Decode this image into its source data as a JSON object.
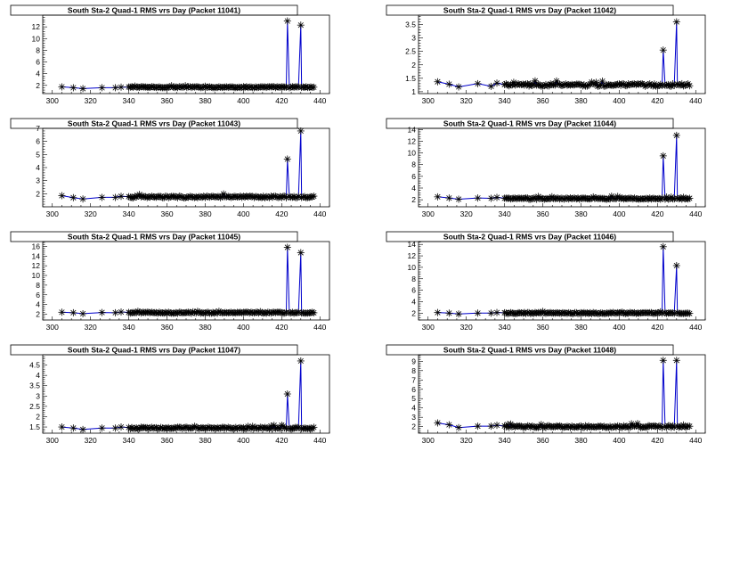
{
  "chart_data": [
    {
      "type": "line",
      "title": "South Sta-2 Quad-1 RMS vrs Day (Packet 11041)",
      "xlim": [
        295,
        445
      ],
      "ylim": [
        0.6,
        14
      ],
      "xticks": [
        300,
        320,
        340,
        360,
        380,
        400,
        420,
        440
      ],
      "yticks": [
        2,
        4,
        6,
        8,
        10,
        12
      ],
      "ytick_labels": [
        "2",
        "4",
        "6",
        "8",
        "10",
        "12"
      ],
      "series": [
        {
          "baseline": 1.7,
          "jitter": 0.09,
          "early": [
            1.75,
            1.6,
            1.45,
            1.6,
            1.6,
            1.7
          ],
          "spikes": [
            [
              423,
              13.0
            ],
            [
              430,
              12.3
            ]
          ]
        }
      ]
    },
    {
      "type": "line",
      "title": "South Sta-2 Quad-1 RMS vrs Day (Packet 11042)",
      "xlim": [
        295,
        445
      ],
      "ylim": [
        0.93,
        3.85
      ],
      "xticks": [
        300,
        320,
        340,
        360,
        380,
        400,
        420,
        440
      ],
      "yticks": [
        1,
        1.5,
        2,
        2.5,
        3,
        3.5
      ],
      "ytick_labels": [
        "1",
        "1.5",
        "2",
        "2.5",
        "3",
        "3.5"
      ],
      "series": [
        {
          "baseline": 1.25,
          "jitter": 0.05,
          "early": [
            1.37,
            1.28,
            1.18,
            1.3,
            1.2,
            1.32
          ],
          "spikes": [
            [
              423,
              2.55
            ],
            [
              430,
              3.6
            ]
          ]
        }
      ]
    },
    {
      "type": "line",
      "title": "South Sta-2 Quad-1 RMS vrs Day (Packet 11043)",
      "xlim": [
        295,
        445
      ],
      "ylim": [
        1.0,
        7.0
      ],
      "xticks": [
        300,
        320,
        340,
        360,
        380,
        400,
        420,
        440
      ],
      "yticks": [
        2,
        3,
        4,
        5,
        6,
        7
      ],
      "ytick_labels": [
        "2",
        "3",
        "4",
        "5",
        "6",
        "7"
      ],
      "series": [
        {
          "baseline": 1.75,
          "jitter": 0.07,
          "early": [
            1.85,
            1.7,
            1.6,
            1.72,
            1.72,
            1.8
          ],
          "spikes": [
            [
              423,
              4.65
            ],
            [
              430,
              6.8
            ]
          ]
        }
      ]
    },
    {
      "type": "line",
      "title": "South Sta-2 Quad-1 RMS vrs Day (Packet 11044)",
      "xlim": [
        295,
        445
      ],
      "ylim": [
        0.8,
        14.2
      ],
      "xticks": [
        300,
        320,
        340,
        360,
        380,
        400,
        420,
        440
      ],
      "yticks": [
        2,
        4,
        6,
        8,
        10,
        12,
        14
      ],
      "ytick_labels": [
        "2",
        "4",
        "6",
        "8",
        "10",
        "12",
        "14"
      ],
      "series": [
        {
          "baseline": 2.2,
          "jitter": 0.12,
          "early": [
            2.5,
            2.3,
            2.1,
            2.3,
            2.25,
            2.4
          ],
          "spikes": [
            [
              423,
              9.5
            ],
            [
              430,
              13.0
            ]
          ]
        }
      ]
    },
    {
      "type": "line",
      "title": "South Sta-2 Quad-1 RMS vrs Day (Packet 11045)",
      "xlim": [
        295,
        445
      ],
      "ylim": [
        0.8,
        17.0
      ],
      "xticks": [
        300,
        320,
        340,
        360,
        380,
        400,
        420,
        440
      ],
      "yticks": [
        2,
        4,
        6,
        8,
        10,
        12,
        14,
        16
      ],
      "ytick_labels": [
        "2",
        "4",
        "6",
        "8",
        "10",
        "12",
        "14",
        "16"
      ],
      "series": [
        {
          "baseline": 2.3,
          "jitter": 0.12,
          "early": [
            2.4,
            2.3,
            2.1,
            2.35,
            2.3,
            2.45
          ],
          "spikes": [
            [
              423,
              15.8
            ],
            [
              430,
              14.7
            ]
          ]
        }
      ]
    },
    {
      "type": "line",
      "title": "South Sta-2 Quad-1 RMS vrs Day (Packet 11046)",
      "xlim": [
        295,
        445
      ],
      "ylim": [
        0.8,
        14.5
      ],
      "xticks": [
        300,
        320,
        340,
        360,
        380,
        400,
        420,
        440
      ],
      "yticks": [
        2,
        4,
        6,
        8,
        10,
        12,
        14
      ],
      "ytick_labels": [
        "2",
        "4",
        "6",
        "8",
        "10",
        "12",
        "14"
      ],
      "series": [
        {
          "baseline": 2.0,
          "jitter": 0.1,
          "early": [
            2.1,
            2.0,
            1.85,
            2.0,
            2.0,
            2.1
          ],
          "spikes": [
            [
              423,
              13.6
            ],
            [
              430,
              10.3
            ]
          ]
        }
      ]
    },
    {
      "type": "line",
      "title": "South Sta-2 Quad-1 RMS vrs Day (Packet 11047)",
      "xlim": [
        295,
        445
      ],
      "ylim": [
        1.2,
        5.0
      ],
      "xticks": [
        300,
        320,
        340,
        360,
        380,
        400,
        420,
        440
      ],
      "yticks": [
        1.5,
        2,
        2.5,
        3,
        3.5,
        4,
        4.5
      ],
      "ytick_labels": [
        "1.5",
        "2",
        "2.5",
        "3",
        "3.5",
        "4",
        "4.5"
      ],
      "series": [
        {
          "baseline": 1.45,
          "jitter": 0.04,
          "early": [
            1.5,
            1.45,
            1.38,
            1.45,
            1.45,
            1.5
          ],
          "spikes": [
            [
              423,
              3.1
            ],
            [
              430,
              4.7
            ]
          ]
        }
      ]
    },
    {
      "type": "line",
      "title": "South Sta-2 Quad-1 RMS vrs Day (Packet 11048)",
      "xlim": [
        295,
        445
      ],
      "ylim": [
        1.3,
        9.7
      ],
      "xticks": [
        300,
        320,
        340,
        360,
        380,
        400,
        420,
        440
      ],
      "yticks": [
        2,
        3,
        4,
        5,
        6,
        7,
        8,
        9
      ],
      "ytick_labels": [
        "2",
        "3",
        "4",
        "5",
        "6",
        "7",
        "8",
        "9"
      ],
      "series": [
        {
          "baseline": 2.0,
          "jitter": 0.1,
          "early": [
            2.4,
            2.2,
            1.9,
            2.05,
            2.05,
            2.15
          ],
          "spikes": [
            [
              423,
              9.1
            ],
            [
              430,
              9.1
            ]
          ]
        }
      ]
    }
  ],
  "colors": {
    "line": "#0000cc",
    "marker": "#000000",
    "frame": "#000000"
  }
}
